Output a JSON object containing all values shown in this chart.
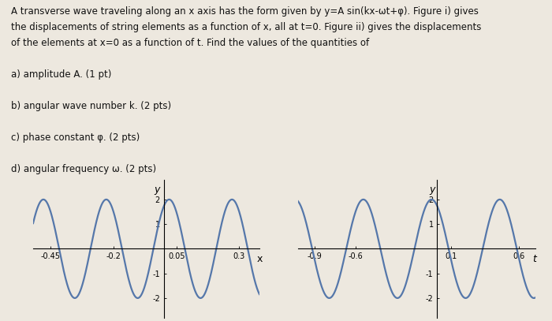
{
  "text_lines": [
    "A transverse wave traveling along an x axis has the form given by y=A sin(kx-ωt+φ). Figure i) gives",
    "the displacements of string elements as a function of x, all at t=0. Figure ii) gives the displacements",
    "of the elements at x=0 as a function of t. Find the values of the quantities of",
    "",
    "a) amplitude A. (1 pt)",
    "",
    "b) angular wave number k. (2 pts)",
    "",
    "c) phase constant φ. (2 pts)",
    "",
    "d) angular frequency ω. (2 pts)"
  ],
  "fig1": {
    "amplitude": 2,
    "wavelength": 0.25,
    "phase": 1.0472,
    "x_min": -0.52,
    "x_max": 0.38,
    "x_ticks": [
      -0.45,
      -0.2,
      0.05,
      0.3
    ],
    "x_tick_labels": [
      "-0.45",
      "-0.2",
      "0.05",
      "0.3"
    ],
    "y_min": -2.8,
    "y_max": 2.8,
    "y_ticks": [
      -2,
      -1,
      1,
      2
    ],
    "y_tick_labels": [
      "-2",
      "-1",
      "1",
      "2"
    ],
    "xlabel": "x",
    "ylabel": "y"
  },
  "fig2": {
    "amplitude": 2,
    "period": 0.5,
    "phase": 1.0472,
    "t_min": -1.02,
    "t_max": 0.72,
    "t_ticks": [
      -0.9,
      -0.6,
      0.1,
      0.6
    ],
    "t_tick_labels": [
      "-0.9",
      "-0.6",
      "0.1",
      "0.6"
    ],
    "y_min": -2.8,
    "y_max": 2.8,
    "y_ticks": [
      -2,
      -1,
      1,
      2
    ],
    "y_tick_labels": [
      "-2",
      "-1",
      "1",
      "2"
    ],
    "xlabel": "t",
    "ylabel": "y"
  },
  "wave_color": "#5577aa",
  "bg_color": "#ede8df",
  "text_color": "#111111",
  "text_fontsize": 8.5,
  "tick_fontsize": 7.0,
  "axis_label_fontsize": 9.0,
  "line_width": 1.6
}
